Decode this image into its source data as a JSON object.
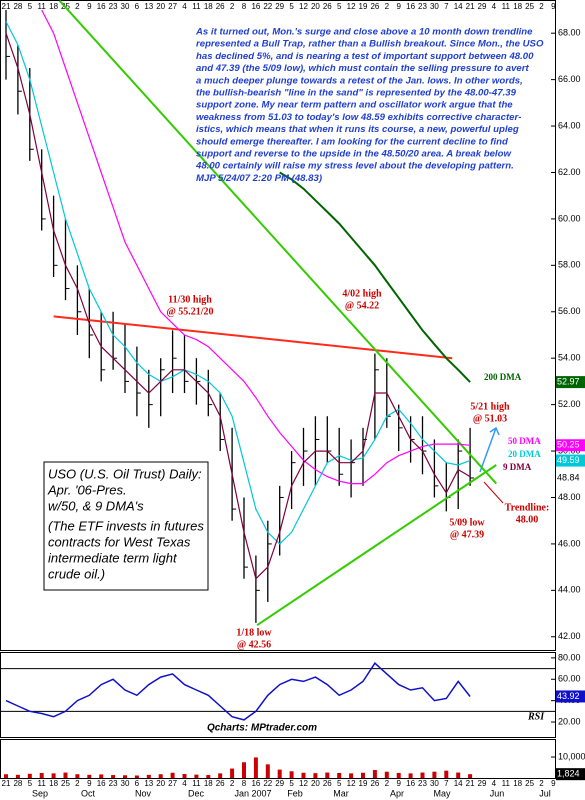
{
  "chart_data": [
    {
      "type": "ohlc",
      "ylim": [
        41.43,
        69.43
      ],
      "yticks": [
        {
          "value": 42,
          "label": "42.00"
        },
        {
          "value": 44,
          "label": "44.00"
        },
        {
          "value": 46,
          "label": "46.00"
        },
        {
          "value": 48,
          "label": "48.00"
        },
        {
          "value": 50,
          "label": "50.00"
        },
        {
          "value": 52,
          "label": "52.00"
        },
        {
          "value": 54,
          "label": "54.00"
        },
        {
          "value": 56,
          "label": "56.00"
        },
        {
          "value": 58,
          "label": "58.00"
        },
        {
          "value": 60,
          "label": "60.00"
        },
        {
          "value": 62,
          "label": "62.00"
        },
        {
          "value": 64,
          "label": "64.00"
        },
        {
          "value": 66,
          "label": "66.00"
        },
        {
          "value": 68,
          "label": "68.00"
        }
      ],
      "week_labels": [
        "21",
        "28",
        "5",
        "11",
        "18",
        "25",
        "2",
        "9",
        "16",
        "23",
        "30",
        "6",
        "13",
        "20",
        "27",
        "4",
        "11",
        "18",
        "26",
        "2",
        "8",
        "16",
        "22",
        "29",
        "5",
        "12",
        "20",
        "26",
        "5",
        "12",
        "19",
        "26",
        "2",
        "9",
        "16",
        "23",
        "30",
        "7",
        "14",
        "21",
        "29",
        "4",
        "11",
        "18",
        "25",
        "2",
        "9"
      ],
      "month_labels": [
        "Sep",
        "Oct",
        "Nov",
        "Dec",
        "Jan 2007",
        "Feb",
        "Mar",
        "Apr",
        "May",
        "Jun",
        "Jul"
      ],
      "color": "#000000",
      "high": [
        69,
        67.5,
        66.5,
        63,
        61,
        60,
        58,
        57,
        56,
        56,
        55.5,
        54.5,
        53.5,
        54,
        55.2,
        55,
        54,
        53.5,
        52.5,
        51,
        48,
        45.5,
        47,
        48.5,
        50,
        51,
        51.5,
        51.5,
        51,
        50.5,
        51,
        54.2,
        54,
        52,
        51.5,
        51.5,
        50.5,
        49.5,
        50.5,
        51
      ],
      "low": [
        66,
        64.5,
        62.5,
        59.5,
        57.5,
        56.5,
        55,
        54,
        53,
        53.5,
        52.5,
        51.5,
        51,
        51.5,
        52.5,
        52.5,
        52,
        51.5,
        50,
        47,
        44.5,
        42.6,
        43.5,
        45.5,
        47.5,
        48.5,
        48.5,
        49.5,
        48.5,
        48,
        48.5,
        50.5,
        51,
        50,
        49.5,
        49,
        48,
        47.4,
        47.5,
        48.5
      ],
      "close": [
        67,
        65.5,
        63,
        60,
        58,
        57,
        56,
        55,
        53.5,
        54,
        53,
        52.5,
        52,
        53.5,
        54,
        53,
        53,
        52,
        50.5,
        47.5,
        45,
        44,
        46,
        48,
        49.5,
        50,
        50.5,
        50,
        49,
        49.5,
        50.5,
        53.5,
        51.5,
        51,
        50.5,
        50,
        48.5,
        48,
        50,
        48.84
      ],
      "close_label_color": "#ffffff",
      "series": [
        {
          "name": "200 DMA",
          "color": "#006400",
          "values": [
            null,
            null,
            null,
            null,
            null,
            null,
            null,
            null,
            null,
            null,
            null,
            null,
            null,
            null,
            null,
            null,
            null,
            null,
            null,
            null,
            null,
            null,
            null,
            62.0,
            61.7,
            61.3,
            60.8,
            60.3,
            59.8,
            59.2,
            58.6,
            58,
            57.3,
            56.6,
            55.9,
            55.2,
            54.6,
            54,
            53.5,
            52.97
          ]
        },
        {
          "name": "50 DMA",
          "color": "#ff00ff",
          "values": [
            null,
            null,
            null,
            69,
            68,
            66.5,
            65,
            63.5,
            62,
            60.5,
            59,
            58,
            57,
            56,
            55.5,
            55,
            54.8,
            54.5,
            54,
            53.5,
            53,
            52.3,
            51.5,
            50.8,
            50.2,
            49.6,
            49.2,
            48.9,
            48.7,
            48.6,
            48.6,
            49,
            49.5,
            49.8,
            50,
            50.2,
            50.3,
            50.3,
            50.3,
            50.25
          ]
        },
        {
          "name": "20 DMA",
          "color": "#00c8d8",
          "values": [
            68.5,
            67.5,
            66,
            64,
            62,
            60,
            58.5,
            57,
            56,
            55,
            54.5,
            53.8,
            53.3,
            53,
            53.2,
            53.5,
            53.3,
            53,
            52.5,
            51.5,
            49.5,
            47.5,
            46.5,
            46,
            46.5,
            47.5,
            48.5,
            49.5,
            49.8,
            49.6,
            49.7,
            50.5,
            51.5,
            51.8,
            51.2,
            50.5,
            50,
            49.5,
            49.4,
            49.59
          ]
        },
        {
          "name": "9 DMA",
          "color": "#800040",
          "values": [
            68,
            66.5,
            64.5,
            62,
            59.5,
            58,
            57,
            55.5,
            54.5,
            54,
            53.5,
            53,
            52.5,
            53,
            53.5,
            53.5,
            53,
            52.5,
            51.5,
            49,
            46.5,
            44.5,
            45,
            46.5,
            48.5,
            49.5,
            50,
            50,
            49.5,
            49.5,
            50,
            52.5,
            52.5,
            51.5,
            50.5,
            50,
            49,
            48.2,
            49.2,
            48.9
          ]
        }
      ],
      "trendlines": [
        {
          "color": "#ff2a1a",
          "x": [
            4,
            37.5
          ],
          "values": [
            55.8,
            54.0
          ]
        },
        {
          "color": "#33cc00",
          "x": [
            4.5,
            41.2
          ],
          "values": [
            69.4,
            48.6
          ]
        },
        {
          "color": "#33cc00",
          "x": [
            21.1,
            41.2
          ],
          "values": [
            42.5,
            49.4
          ]
        }
      ],
      "annotations": [
        {
          "color": "#1f3fd1",
          "lines": [
            "As it turned out, Mon.'s surge and close above a 10 month down trendline",
            "represented a Bull Trap, rather than a Bullish breakout. Since Mon., the USO",
            "has declined 5%, and is nearing a test of important support between 48.00",
            "and 47.39 (the 5/09 low), which must contain the selling pressure to avert",
            "a much deeper plunge towards a retest of the Jan. lows. In other words,",
            "the bullish-bearish \"line in the sand\" is represented by the 48.00-47.39",
            "support zone. My near term pattern and oscillator work argue that the",
            "weakness from 51.03 to today's low 48.59 exhibits corrective character-",
            "istics, which means that when it runs its course, a new, powerful upleg",
            "should emerge thereafter. I am looking for the current decline to find",
            "support and reverse to the upside in the 48.50/20 area. A break below",
            "48.00 certainly will raise my stress level about the developing pattern.",
            "MJP 5/24/07 2:20 PM (48.83)"
          ]
        },
        {
          "color": "#cc0000",
          "lines": [
            "11/30 high",
            "@ 55.21/20"
          ]
        },
        {
          "color": "#cc0000",
          "lines": [
            "4/02 high",
            "@ 54.22"
          ]
        },
        {
          "color": "#cc0000",
          "lines": [
            "5/21 high",
            "@ 51.03"
          ]
        },
        {
          "color": "#cc0000",
          "lines": [
            "5/09 low",
            "@ 47.39"
          ]
        },
        {
          "color": "#cc0000",
          "lines": [
            "1/18 low",
            "@ 42.56"
          ]
        },
        {
          "color": "#cc0000",
          "lines": [
            "Trendline:",
            "48.00"
          ]
        }
      ],
      "info_box": {
        "lines": [
          "USO (U.S. Oil Trust) Daily:",
          "Apr. '06-Pres.",
          "w/50, & 9 DMA's"
        ],
        "note_lines": [
          "(The ETF invests in futures",
          "contracts for West Texas",
          "intermediate term light",
          "crude oil.)"
        ]
      }
    },
    {
      "type": "line",
      "title": "RSI",
      "source": "Qcharts: MPtrader.com",
      "ylim": [
        6,
        85.5
      ],
      "yticks": [
        {
          "value": 20,
          "label": "20.00"
        },
        {
          "value": 40,
          "label": "40.00"
        },
        {
          "value": 60,
          "label": "60.00"
        },
        {
          "value": 80,
          "label": "80.00"
        }
      ],
      "levels": [
        30,
        70
      ],
      "color": "#1010cc",
      "values": [
        40,
        35,
        30,
        28,
        25,
        30,
        40,
        45,
        55,
        60,
        50,
        45,
        55,
        62,
        65,
        55,
        50,
        45,
        35,
        25,
        22,
        30,
        45,
        55,
        60,
        58,
        62,
        55,
        45,
        50,
        58,
        75,
        65,
        55,
        50,
        52,
        40,
        42,
        58,
        43.92
      ]
    },
    {
      "type": "bar",
      "ylim": [
        0,
        18600
      ],
      "yticks": [
        {
          "value": 10000,
          "label": "10,000"
        }
      ],
      "color": "#cc0000",
      "values": [
        1800,
        1500,
        2000,
        2400,
        2200,
        2600,
        1800,
        1500,
        1700,
        1400,
        1300,
        1200,
        1500,
        1800,
        2500,
        1900,
        1600,
        1400,
        2200,
        4500,
        7500,
        9800,
        6500,
        4000,
        3200,
        2500,
        2300,
        2600,
        2400,
        2200,
        2500,
        3800,
        3000,
        2400,
        2200,
        2600,
        3000,
        3500,
        2600,
        1824
      ],
      "value_labels": [
        null,
        null,
        null,
        null,
        null,
        null,
        null,
        null,
        null,
        null,
        null,
        null,
        null,
        null,
        null,
        null,
        null,
        null,
        null,
        null,
        null,
        null,
        null,
        null,
        null,
        null,
        null,
        null,
        null,
        null,
        null,
        null,
        null,
        null,
        null,
        null,
        null,
        null,
        null,
        "1,824"
      ]
    }
  ]
}
